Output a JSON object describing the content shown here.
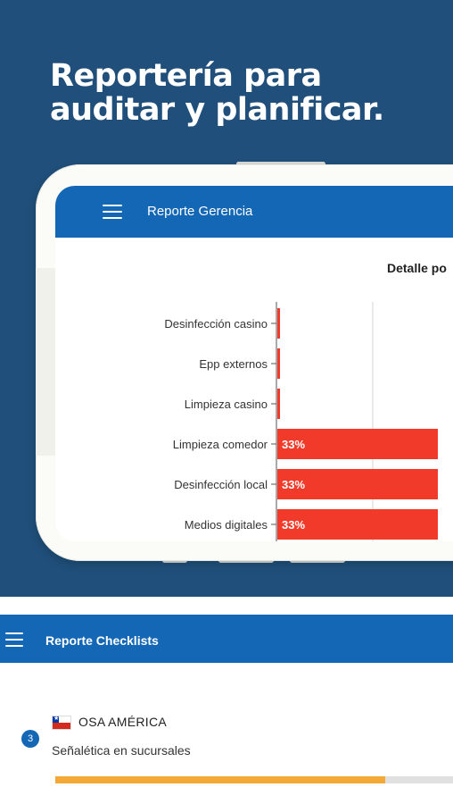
{
  "hero": {
    "title_line1": "Reportería para",
    "title_line2": "auditar y planificar."
  },
  "phone_app": {
    "title": "Reporte Gerencia",
    "chart_heading": "Detalle po"
  },
  "chart_data": {
    "type": "bar",
    "orientation": "horizontal",
    "categories": [
      "Desinfección casino",
      "Epp externos",
      "Limpieza casino",
      "Limpieza comedor",
      "Desinfección local",
      "Medios digitales"
    ],
    "values": [
      0,
      0,
      0,
      33,
      33,
      33
    ],
    "labels": [
      "",
      "",
      "",
      "33%",
      "33%",
      "33%"
    ],
    "bar_color": "#f23a2a"
  },
  "bottom_app": {
    "title": "Reporte Checklists",
    "organization": "OSA AMÉRICA",
    "count": "3",
    "task": "Señalética en sucursales",
    "progress": 0.83,
    "progress_color": "#f4a838"
  }
}
